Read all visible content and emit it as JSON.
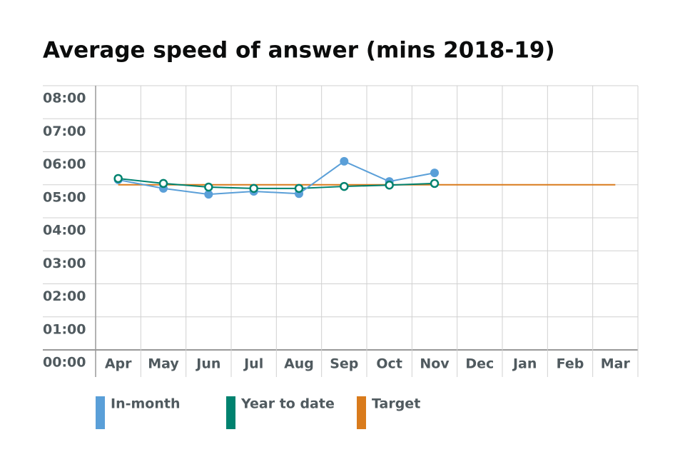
{
  "chart_data": {
    "type": "line",
    "title": "Average speed of answer (mins 2018-19)",
    "categories": [
      "Apr",
      "May",
      "Jun",
      "Jul",
      "Aug",
      "Sep",
      "Oct",
      "Nov",
      "Dec",
      "Jan",
      "Feb",
      "Mar"
    ],
    "series": [
      {
        "name": "In-month",
        "color": "#5a9fd8",
        "marker": "filled",
        "values": [
          5.15,
          4.89,
          4.71,
          4.8,
          4.73,
          5.71,
          5.1,
          5.36,
          null,
          null,
          null,
          null
        ]
      },
      {
        "name": "Year to date",
        "color": "#00826f",
        "marker": "hollow",
        "values": [
          5.19,
          5.04,
          4.93,
          4.89,
          4.89,
          4.95,
          4.99,
          5.04,
          null,
          null,
          null,
          null
        ]
      },
      {
        "name": "Target",
        "color": "#d97b1c",
        "marker": "none",
        "values": [
          5,
          5,
          5,
          5,
          5,
          5,
          5,
          5,
          5,
          5,
          5,
          5
        ]
      }
    ],
    "ylim": [
      0,
      8
    ],
    "yticks": [
      {
        "value": 0,
        "label": "00:00"
      },
      {
        "value": 1,
        "label": "01:00"
      },
      {
        "value": 2,
        "label": "02:00"
      },
      {
        "value": 3,
        "label": "03:00"
      },
      {
        "value": 4,
        "label": "04:00"
      },
      {
        "value": 5,
        "label": "05:00"
      },
      {
        "value": 6,
        "label": "06:00"
      },
      {
        "value": 7,
        "label": "07:00"
      },
      {
        "value": 8,
        "label": "08:00"
      }
    ],
    "grid": true,
    "legend": "bottom"
  }
}
